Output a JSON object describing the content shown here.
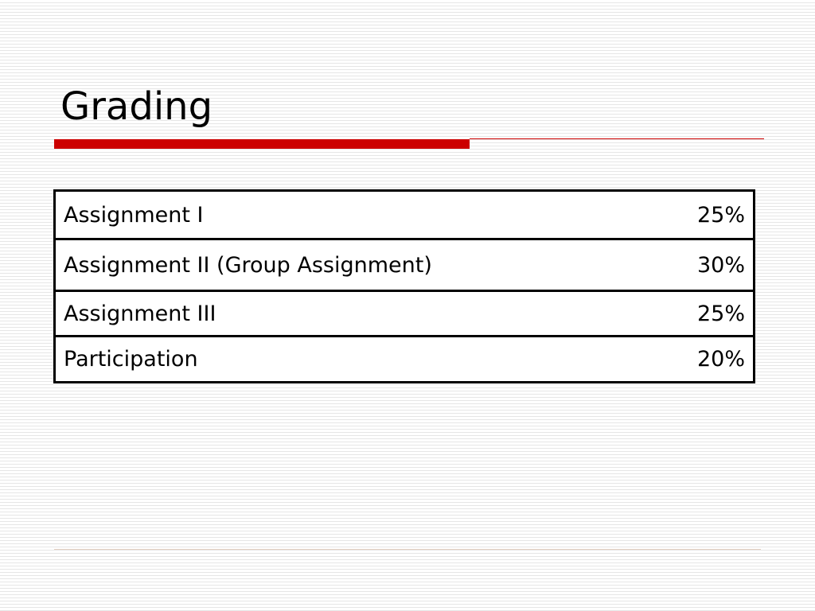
{
  "header": {
    "title": "Grading"
  },
  "table": {
    "rows": [
      [
        "Assignment I",
        "25%"
      ],
      [
        "Assignment II (Group Assignment)",
        "30%"
      ],
      [
        "Assignment III",
        "25%"
      ],
      [
        "Participation",
        "20%"
      ]
    ]
  }
}
